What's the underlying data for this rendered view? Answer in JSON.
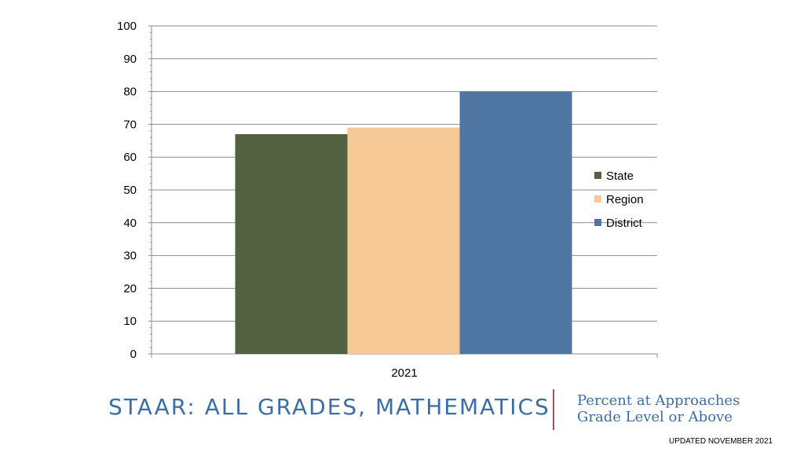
{
  "chart_data": {
    "type": "bar",
    "categories": [
      "2021"
    ],
    "series": [
      {
        "name": "State",
        "values": [
          67
        ],
        "color": "#536140"
      },
      {
        "name": "Region",
        "values": [
          69
        ],
        "color": "#f5c895"
      },
      {
        "name": "District",
        "values": [
          80
        ],
        "color": "#4f75a2"
      }
    ],
    "ylim": [
      0,
      100
    ],
    "yticks": [
      0,
      10,
      20,
      30,
      40,
      50,
      60,
      70,
      80,
      90,
      100
    ],
    "grid": true,
    "legend": "right",
    "title": "",
    "xlabel": "",
    "ylabel": ""
  },
  "footer": {
    "title": "STAAR:  ALL GRADES, MATHEMATICS",
    "subtitle_line1": "Percent at Approaches",
    "subtitle_line2": "Grade Level or Above",
    "updated": "UPDATED NOVEMBER 2021"
  }
}
